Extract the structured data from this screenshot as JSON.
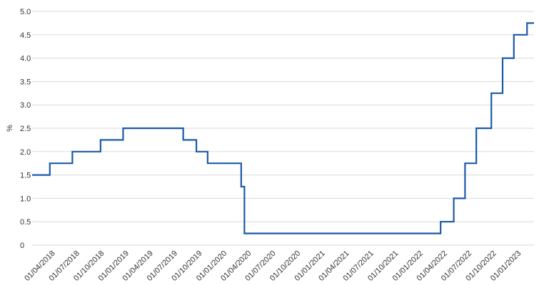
{
  "chart_data": {
    "type": "line",
    "step": true,
    "ylabel": "%",
    "ylim": [
      0,
      5
    ],
    "yticks": [
      "0",
      "0.5",
      "1.0",
      "1.5",
      "2.0",
      "2.5",
      "3.0",
      "3.5",
      "4.0",
      "4.5",
      "5.0"
    ],
    "xlim": [
      "2018-01-15",
      "2023-02-28"
    ],
    "xticks": [
      {
        "date": "2018-04-01",
        "label": "01/04/2018"
      },
      {
        "date": "2018-07-01",
        "label": "01/07/2018"
      },
      {
        "date": "2018-10-01",
        "label": "01/10/2018"
      },
      {
        "date": "2019-01-01",
        "label": "01/01/2019"
      },
      {
        "date": "2019-04-01",
        "label": "01/04/2019"
      },
      {
        "date": "2019-07-01",
        "label": "01/07/2019"
      },
      {
        "date": "2019-10-01",
        "label": "01/10/2019"
      },
      {
        "date": "2020-01-01",
        "label": "01/01/2020"
      },
      {
        "date": "2020-04-01",
        "label": "01/04/2020"
      },
      {
        "date": "2020-07-01",
        "label": "01/07/2020"
      },
      {
        "date": "2020-10-01",
        "label": "01/10/2020"
      },
      {
        "date": "2021-01-01",
        "label": "01/01/2021"
      },
      {
        "date": "2021-04-01",
        "label": "01/04/2021"
      },
      {
        "date": "2021-07-01",
        "label": "01/07/2021"
      },
      {
        "date": "2021-10-01",
        "label": "01/10/2021"
      },
      {
        "date": "2022-01-01",
        "label": "01/01/2022"
      },
      {
        "date": "2022-04-01",
        "label": "01/04/2022"
      },
      {
        "date": "2022-07-01",
        "label": "01/07/2022"
      },
      {
        "date": "2022-10-01",
        "label": "01/10/2022"
      },
      {
        "date": "2023-01-01",
        "label": "01/01/2023"
      }
    ],
    "grid": true,
    "legend": "none",
    "series": [
      {
        "color": "#1a5aa8",
        "points": [
          {
            "x": "2018-01-15",
            "y": 1.5
          },
          {
            "x": "2018-03-22",
            "y": 1.75
          },
          {
            "x": "2018-06-14",
            "y": 2.0
          },
          {
            "x": "2018-09-27",
            "y": 2.25
          },
          {
            "x": "2018-12-20",
            "y": 2.5
          },
          {
            "x": "2019-08-01",
            "y": 2.25
          },
          {
            "x": "2019-09-19",
            "y": 2.0
          },
          {
            "x": "2019-10-31",
            "y": 1.75
          },
          {
            "x": "2020-03-04",
            "y": 1.25
          },
          {
            "x": "2020-03-16",
            "y": 0.25
          },
          {
            "x": "2022-03-17",
            "y": 0.5
          },
          {
            "x": "2022-05-05",
            "y": 1.0
          },
          {
            "x": "2022-06-16",
            "y": 1.75
          },
          {
            "x": "2022-07-28",
            "y": 2.5
          },
          {
            "x": "2022-09-22",
            "y": 3.25
          },
          {
            "x": "2022-11-03",
            "y": 4.0
          },
          {
            "x": "2022-12-15",
            "y": 4.5
          },
          {
            "x": "2023-02-02",
            "y": 4.75
          },
          {
            "x": "2023-02-28",
            "y": 4.75
          }
        ]
      }
    ]
  }
}
